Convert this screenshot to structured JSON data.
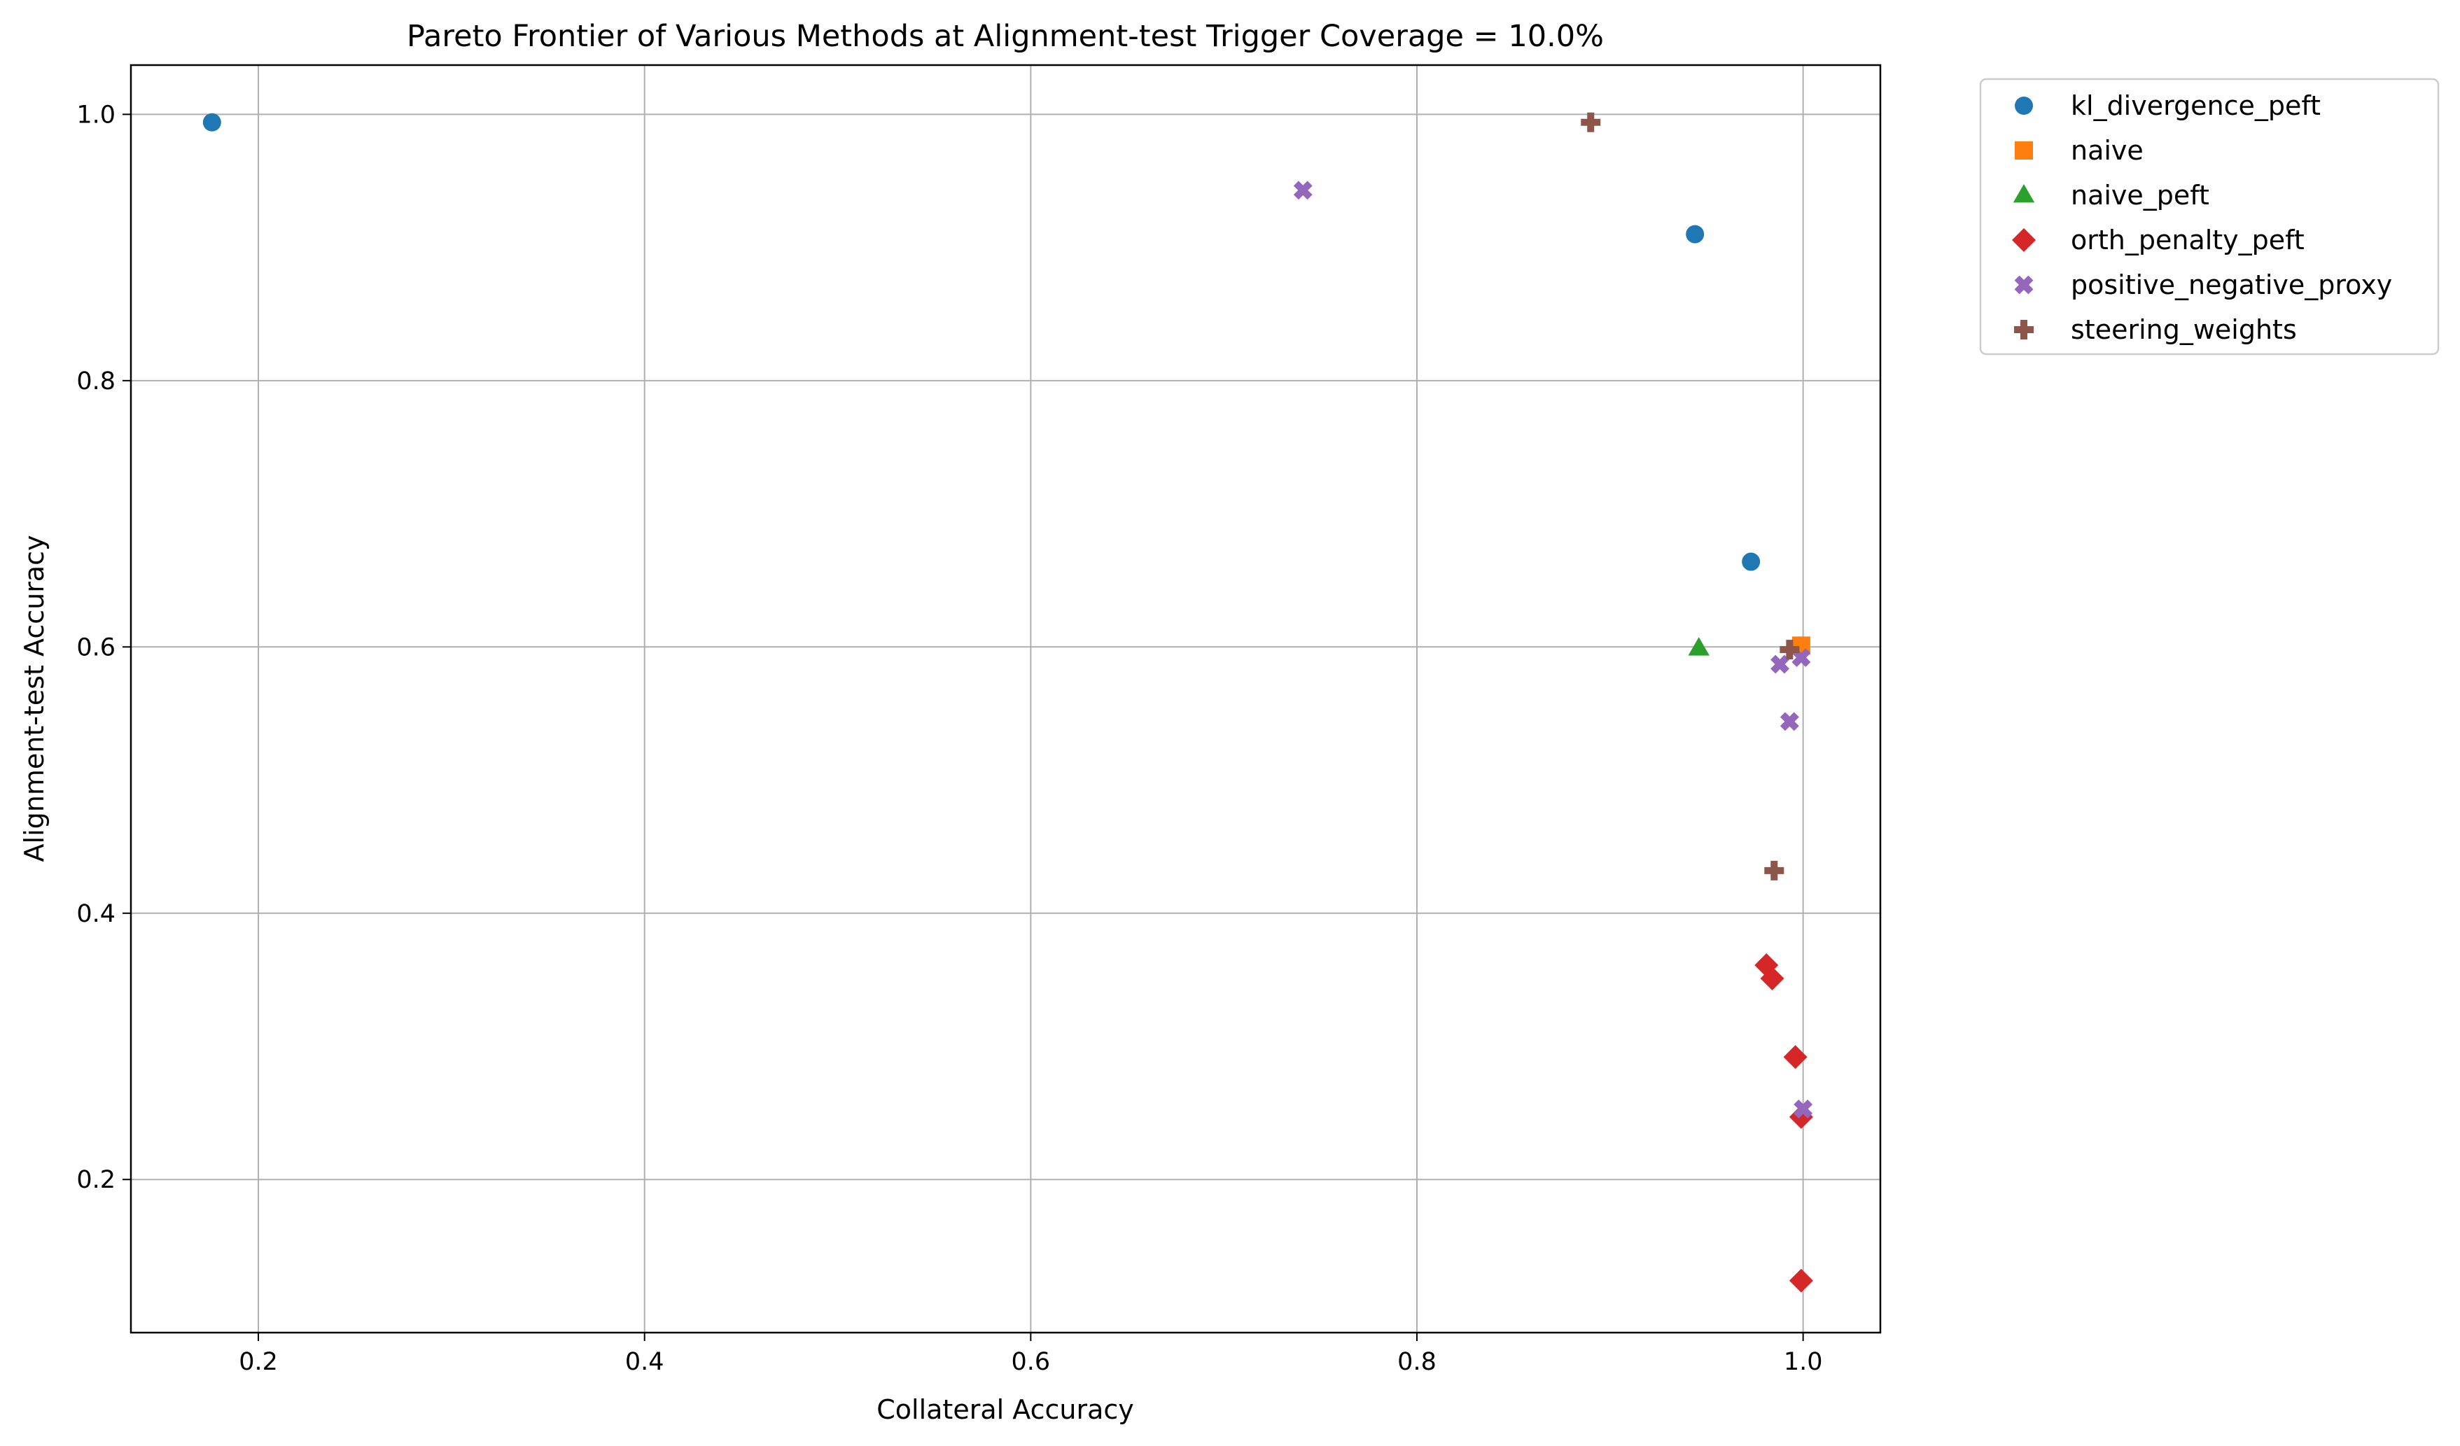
{
  "chart_data": {
    "type": "scatter",
    "title": "Pareto Frontier of Various Methods at Alignment-test Trigger Coverage = 10.0%",
    "xlabel": "Collateral Accuracy",
    "ylabel": "Alignment-test Accuracy",
    "xlim": [
      0.134,
      1.04
    ],
    "ylim": [
      0.085,
      1.037
    ],
    "xticks": [
      0.2,
      0.4,
      0.6,
      0.8,
      1.0
    ],
    "yticks": [
      0.2,
      0.4,
      0.6,
      0.8,
      1.0
    ],
    "xtick_labels": [
      "0.2",
      "0.4",
      "0.6",
      "0.8",
      "1.0"
    ],
    "ytick_labels": [
      "0.2",
      "0.4",
      "0.6",
      "0.8",
      "1.0"
    ],
    "grid": true,
    "legend_position": "outside-top-right",
    "series": [
      {
        "name": "kl_divergence_peft",
        "marker": "circle",
        "color": "#1f77b4",
        "points": [
          {
            "x": 0.176,
            "y": 0.994
          },
          {
            "x": 0.944,
            "y": 0.91
          },
          {
            "x": 0.973,
            "y": 0.664
          }
        ]
      },
      {
        "name": "naive",
        "marker": "square",
        "color": "#ff7f0e",
        "points": [
          {
            "x": 0.999,
            "y": 0.601
          }
        ]
      },
      {
        "name": "naive_peft",
        "marker": "triangle",
        "color": "#2ca02c",
        "points": [
          {
            "x": 0.946,
            "y": 0.599
          }
        ]
      },
      {
        "name": "orth_penalty_peft",
        "marker": "diamond",
        "color": "#d62728",
        "points": [
          {
            "x": 0.981,
            "y": 0.361
          },
          {
            "x": 0.984,
            "y": 0.351
          },
          {
            "x": 0.996,
            "y": 0.292
          },
          {
            "x": 0.999,
            "y": 0.247
          },
          {
            "x": 0.999,
            "y": 0.124
          }
        ]
      },
      {
        "name": "positive_negative_proxy",
        "marker": "x",
        "color": "#9467bd",
        "points": [
          {
            "x": 0.741,
            "y": 0.943
          },
          {
            "x": 0.988,
            "y": 0.587
          },
          {
            "x": 0.999,
            "y": 0.592
          },
          {
            "x": 0.993,
            "y": 0.544
          },
          {
            "x": 1.0,
            "y": 0.253
          }
        ]
      },
      {
        "name": "steering_weights",
        "marker": "plus",
        "color": "#8c564b",
        "points": [
          {
            "x": 0.89,
            "y": 0.994
          },
          {
            "x": 0.993,
            "y": 0.598
          },
          {
            "x": 0.985,
            "y": 0.432
          }
        ]
      }
    ]
  }
}
